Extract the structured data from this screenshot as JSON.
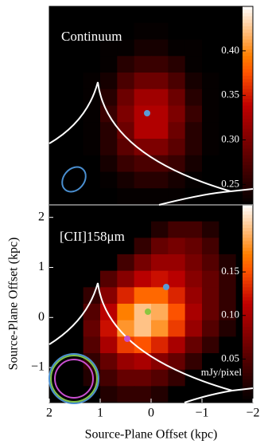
{
  "chart_data": [
    {
      "type": "heatmap",
      "title": "Continuum",
      "values": [
        [
          0.22,
          0.22,
          0.22,
          0.22,
          0.22,
          0.22,
          0.22,
          0.22,
          0.22,
          0.22,
          0.22,
          0.22
        ],
        [
          0.22,
          0.22,
          0.22,
          0.22,
          0.22,
          0.23,
          0.23,
          0.22,
          0.22,
          0.22,
          0.22,
          0.22
        ],
        [
          0.22,
          0.22,
          0.22,
          0.23,
          0.23,
          0.24,
          0.24,
          0.23,
          0.23,
          0.22,
          0.22,
          0.22
        ],
        [
          0.22,
          0.22,
          0.22,
          0.23,
          0.25,
          0.26,
          0.26,
          0.25,
          0.23,
          0.22,
          0.22,
          0.22
        ],
        [
          0.22,
          0.22,
          0.23,
          0.24,
          0.27,
          0.29,
          0.29,
          0.27,
          0.24,
          0.23,
          0.22,
          0.22
        ],
        [
          0.22,
          0.22,
          0.23,
          0.25,
          0.29,
          0.32,
          0.32,
          0.29,
          0.25,
          0.23,
          0.22,
          0.22
        ],
        [
          0.22,
          0.22,
          0.23,
          0.26,
          0.3,
          0.33,
          0.33,
          0.3,
          0.26,
          0.23,
          0.22,
          0.22
        ],
        [
          0.22,
          0.22,
          0.23,
          0.25,
          0.29,
          0.33,
          0.33,
          0.29,
          0.25,
          0.23,
          0.22,
          0.22
        ],
        [
          0.22,
          0.22,
          0.23,
          0.25,
          0.28,
          0.3,
          0.3,
          0.28,
          0.25,
          0.23,
          0.22,
          0.22
        ],
        [
          0.22,
          0.22,
          0.22,
          0.24,
          0.26,
          0.27,
          0.27,
          0.26,
          0.24,
          0.22,
          0.22,
          0.22
        ],
        [
          0.22,
          0.22,
          0.22,
          0.23,
          0.24,
          0.25,
          0.25,
          0.24,
          0.23,
          0.22,
          0.22,
          0.22
        ],
        [
          0.22,
          0.22,
          0.22,
          0.22,
          0.23,
          0.23,
          0.23,
          0.23,
          0.22,
          0.22,
          0.22,
          0.22
        ]
      ],
      "colorbar": {
        "lim": [
          0.227,
          0.45
        ],
        "ticks": [
          0.25,
          {
            "value": 0.3,
            "label": "0.30"
          },
          0.35,
          {
            "value": 0.4,
            "label": "0.40"
          }
        ]
      }
    },
    {
      "type": "heatmap",
      "title": "[CII]158μm",
      "xlabel": "Source-Plane Offset (kpc)",
      "ylabel": "Source-Plane Offset (kpc)",
      "xlim": [
        2,
        -2
      ],
      "xticks": [
        2,
        1,
        0,
        {
          "value": -1,
          "label": "−1"
        },
        {
          "value": -2,
          "label": "−2"
        }
      ],
      "ylim": [
        -1.7,
        2.25
      ],
      "yticks": [
        {
          "value": -1,
          "label": "−1"
        },
        0,
        1,
        2
      ],
      "values": [
        [
          0,
          0,
          0,
          0,
          0,
          0,
          0,
          0,
          0,
          0,
          0,
          0
        ],
        [
          0,
          0,
          0,
          0,
          0,
          0,
          0.02,
          0.04,
          0.04,
          0.02,
          0,
          0
        ],
        [
          0,
          0,
          0,
          0,
          0,
          0.03,
          0.06,
          0.07,
          0.06,
          0.04,
          0,
          0
        ],
        [
          0,
          0,
          0,
          0,
          0.04,
          0.07,
          0.09,
          0.09,
          0.07,
          0.05,
          0.02,
          0
        ],
        [
          0,
          0,
          0,
          0.05,
          0.08,
          0.11,
          0.12,
          0.11,
          0.08,
          0.06,
          0.03,
          0
        ],
        [
          0,
          0,
          0.03,
          0.08,
          0.13,
          0.16,
          0.16,
          0.13,
          0.09,
          0.06,
          0.03,
          0
        ],
        [
          0,
          0,
          0.05,
          0.11,
          0.17,
          0.2,
          0.19,
          0.15,
          0.1,
          0.06,
          0.03,
          0
        ],
        [
          0,
          0,
          0.06,
          0.12,
          0.18,
          0.2,
          0.18,
          0.14,
          0.09,
          0.05,
          0.02,
          0
        ],
        [
          0,
          0,
          0.05,
          0.1,
          0.14,
          0.15,
          0.13,
          0.1,
          0.06,
          0.03,
          0,
          0
        ],
        [
          0,
          0,
          0.03,
          0.06,
          0.09,
          0.1,
          0.08,
          0.06,
          0.03,
          0,
          0,
          0
        ],
        [
          0,
          0,
          0.02,
          0.04,
          0.06,
          0.06,
          0.05,
          0.03,
          0,
          0,
          0,
          0
        ],
        [
          0,
          0,
          0,
          0.02,
          0.03,
          0.03,
          0.02,
          0,
          0,
          0,
          0,
          0
        ]
      ],
      "colorbar": {
        "label": "mJy/pixel",
        "lim": [
          0,
          0.227
        ],
        "ticks": [
          0.05,
          {
            "value": 0.1,
            "label": "0.10"
          },
          0.15
        ]
      }
    }
  ]
}
